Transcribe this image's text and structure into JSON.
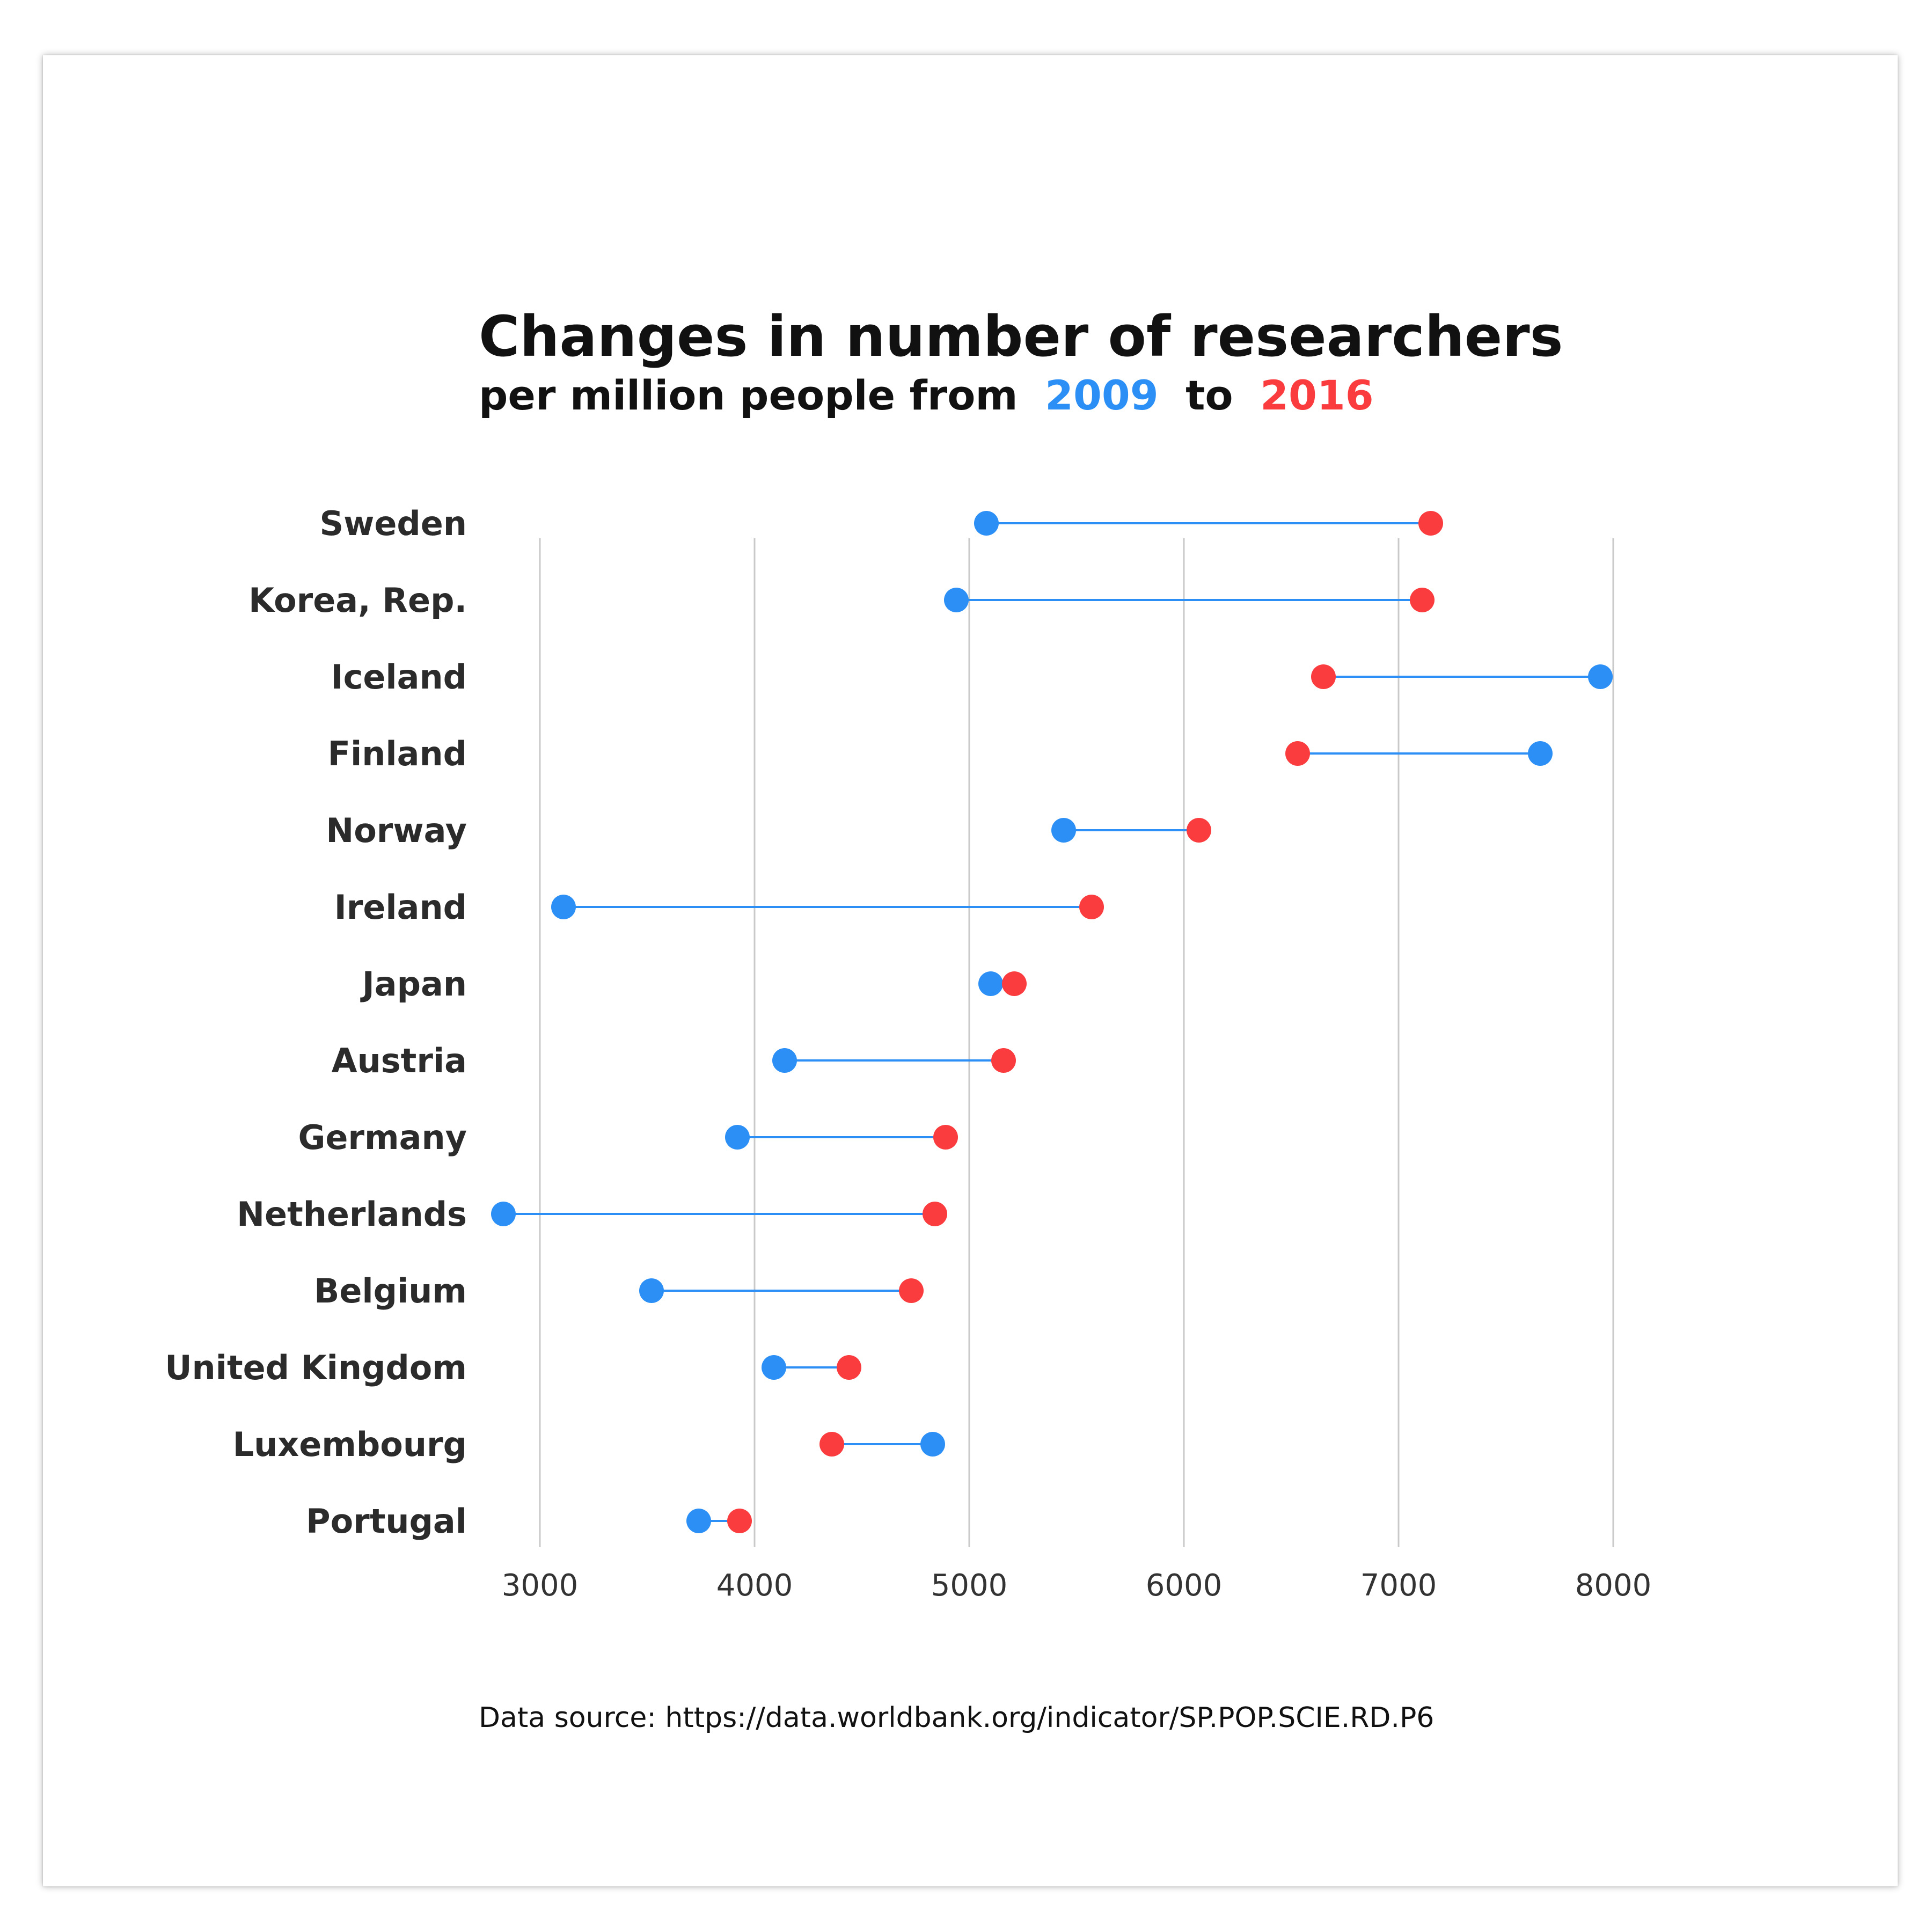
{
  "chart_data": {
    "type": "dumbbell",
    "title": "Changes in number of researchers",
    "subtitle": {
      "prefix": "per million people from",
      "start_label": "2009",
      "middle": "to",
      "end_label": "2016"
    },
    "source": "Data source: https://data.worldbank.org/indicator/SP.POP.SCIE.RD.P6",
    "xlim": [
      2700,
      8200
    ],
    "xticks": [
      3000,
      4000,
      5000,
      6000,
      7000,
      8000
    ],
    "xlabel": "",
    "ylabel": "",
    "grid": true,
    "series": [
      {
        "name": "2009",
        "color": "#2b8ff6"
      },
      {
        "name": "2016",
        "color": "#fa3c3f"
      }
    ],
    "categories": [
      "Sweden",
      "Korea, Rep.",
      "Iceland",
      "Finland",
      "Norway",
      "Ireland",
      "Japan",
      "Austria",
      "Germany",
      "Netherlands",
      "Belgium",
      "United Kingdom",
      "Luxembourg",
      "Portugal"
    ],
    "values_2009": [
      5080,
      4940,
      7940,
      7660,
      5440,
      3110,
      5100,
      4140,
      3920,
      2830,
      3520,
      4090,
      4830,
      3740
    ],
    "values_2016": [
      7150,
      7110,
      6650,
      6530,
      6070,
      5570,
      5210,
      5160,
      4890,
      4840,
      4730,
      4440,
      4360,
      3930
    ]
  }
}
